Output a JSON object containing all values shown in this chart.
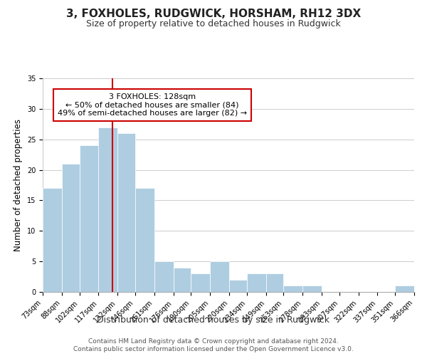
{
  "title": "3, FOXHOLES, RUDGWICK, HORSHAM, RH12 3DX",
  "subtitle": "Size of property relative to detached houses in Rudgwick",
  "xlabel": "Distribution of detached houses by size in Rudgwick",
  "ylabel": "Number of detached properties",
  "footer_line1": "Contains HM Land Registry data © Crown copyright and database right 2024.",
  "footer_line2": "Contains public sector information licensed under the Open Government Licence v3.0.",
  "bin_labels": [
    "73sqm",
    "88sqm",
    "102sqm",
    "117sqm",
    "132sqm",
    "146sqm",
    "161sqm",
    "176sqm",
    "190sqm",
    "205sqm",
    "220sqm",
    "234sqm",
    "249sqm",
    "263sqm",
    "278sqm",
    "293sqm",
    "307sqm",
    "322sqm",
    "337sqm",
    "351sqm",
    "366sqm"
  ],
  "all_bins": [
    73,
    88,
    102,
    117,
    132,
    146,
    161,
    176,
    190,
    205,
    220,
    234,
    249,
    263,
    278,
    293,
    307,
    322,
    337,
    351,
    366
  ],
  "counts": [
    17,
    21,
    24,
    27,
    26,
    17,
    5,
    4,
    3,
    5,
    2,
    3,
    3,
    1,
    1,
    0,
    0,
    0,
    0,
    1
  ],
  "bar_color": "#aecde1",
  "bar_edge_color": "#ffffff",
  "vline_x": 128,
  "vline_color": "#cc0000",
  "annotation_title": "3 FOXHOLES: 128sqm",
  "annotation_line2": "← 50% of detached houses are smaller (84)",
  "annotation_line3": "49% of semi-detached houses are larger (82) →",
  "annotation_box_color": "#ffffff",
  "annotation_box_edge_color": "#cc0000",
  "ylim": [
    0,
    35
  ],
  "yticks": [
    0,
    5,
    10,
    15,
    20,
    25,
    30,
    35
  ],
  "bg_color": "#ffffff",
  "grid_color": "#cccccc",
  "title_fontsize": 11,
  "subtitle_fontsize": 9,
  "xlabel_fontsize": 9,
  "ylabel_fontsize": 8.5,
  "tick_fontsize": 7,
  "footer_fontsize": 6.5
}
